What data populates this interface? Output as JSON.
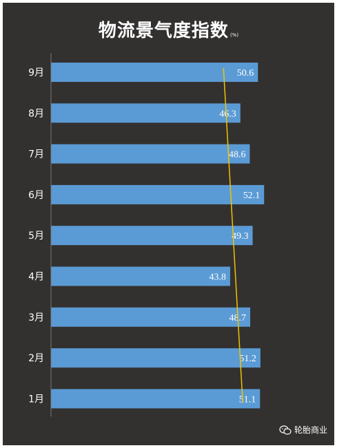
{
  "title": "物流景气度指数",
  "title_unit": "(%)",
  "watermark": "轮胎商业",
  "colors": {
    "background": "#333130",
    "bar": "#5b9bd5",
    "trend_line": "#f2c200",
    "text": "#ffffff"
  },
  "chart_data": {
    "type": "bar",
    "orientation": "horizontal",
    "title": "物流景气度指数",
    "unit": "(%)",
    "categories": [
      "9月",
      "8月",
      "7月",
      "6月",
      "5月",
      "4月",
      "3月",
      "2月",
      "1月"
    ],
    "values": [
      50.6,
      46.3,
      48.6,
      52.1,
      49.3,
      43.8,
      48.7,
      51.2,
      51.1
    ],
    "trend_line": {
      "from": "1月",
      "to": "9月"
    },
    "grid": false,
    "legend": "none"
  }
}
